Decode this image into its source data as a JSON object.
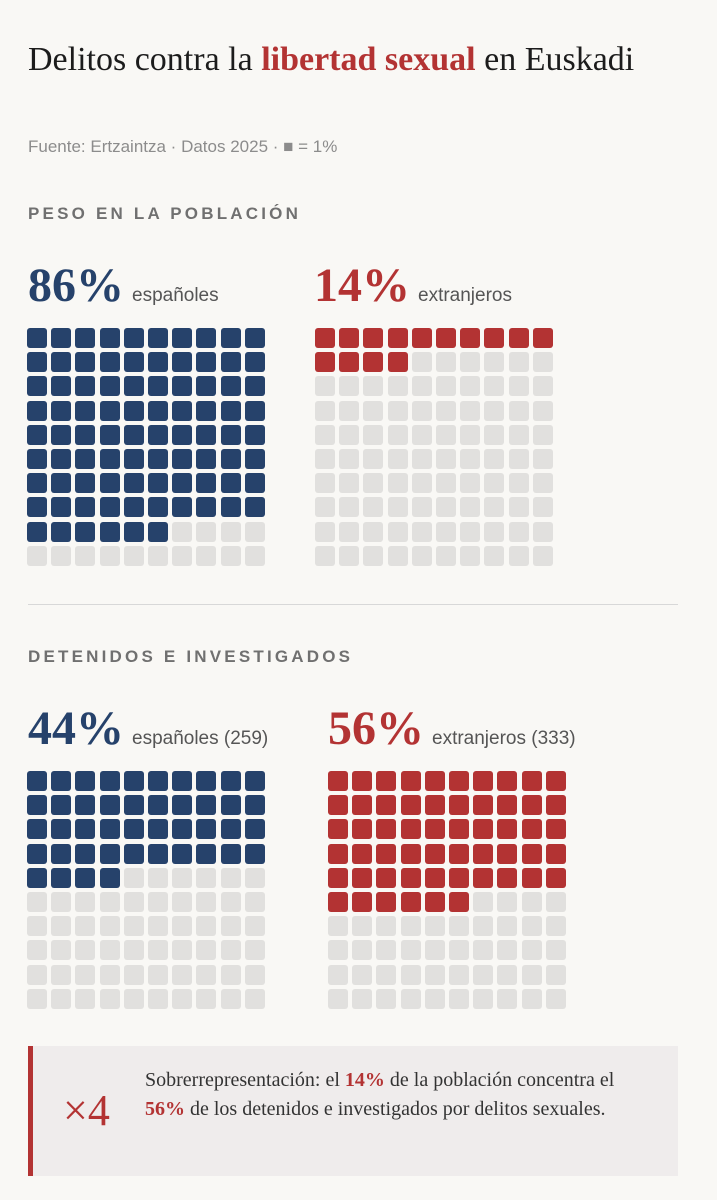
{
  "title": {
    "before": "Delitos contra la ",
    "highlight": "libertad sexual",
    "after": " en Euskadi"
  },
  "subtitle": "Fuente: Ertzaintza · Datos 2025 · ■ = 1%",
  "colors": {
    "blue": "#26426b",
    "red": "#b33333",
    "empty": "#e1e0de"
  },
  "chart_data": [
    {
      "type": "waffle",
      "title": "PESO EN LA POBLACIÓN",
      "unit": "■ = 1%",
      "series": [
        {
          "name": "españoles",
          "value": 86,
          "pct_label": "86%",
          "label": "españoles",
          "color": "#26426b"
        },
        {
          "name": "extranjeros",
          "value": 14,
          "pct_label": "14%",
          "label": "extranjeros",
          "color": "#b33333"
        }
      ]
    },
    {
      "type": "waffle",
      "title": "DETENIDOS E INVESTIGADOS",
      "unit": "■ = 1%",
      "series": [
        {
          "name": "españoles",
          "value": 44,
          "count": 259,
          "pct_label": "44%",
          "label": "españoles (259)",
          "color": "#26426b"
        },
        {
          "name": "extranjeros",
          "value": 56,
          "count": 333,
          "pct_label": "56%",
          "label": "extranjeros (333)",
          "color": "#b33333"
        }
      ]
    }
  ],
  "callout": {
    "multiplier": "×4",
    "t1": "Sobrerrepresentación: el ",
    "v1": "14%",
    "t2": " de la población concentra el ",
    "v2": "56%",
    "t3": " de los detenidos e investigados por delitos sexuales."
  }
}
